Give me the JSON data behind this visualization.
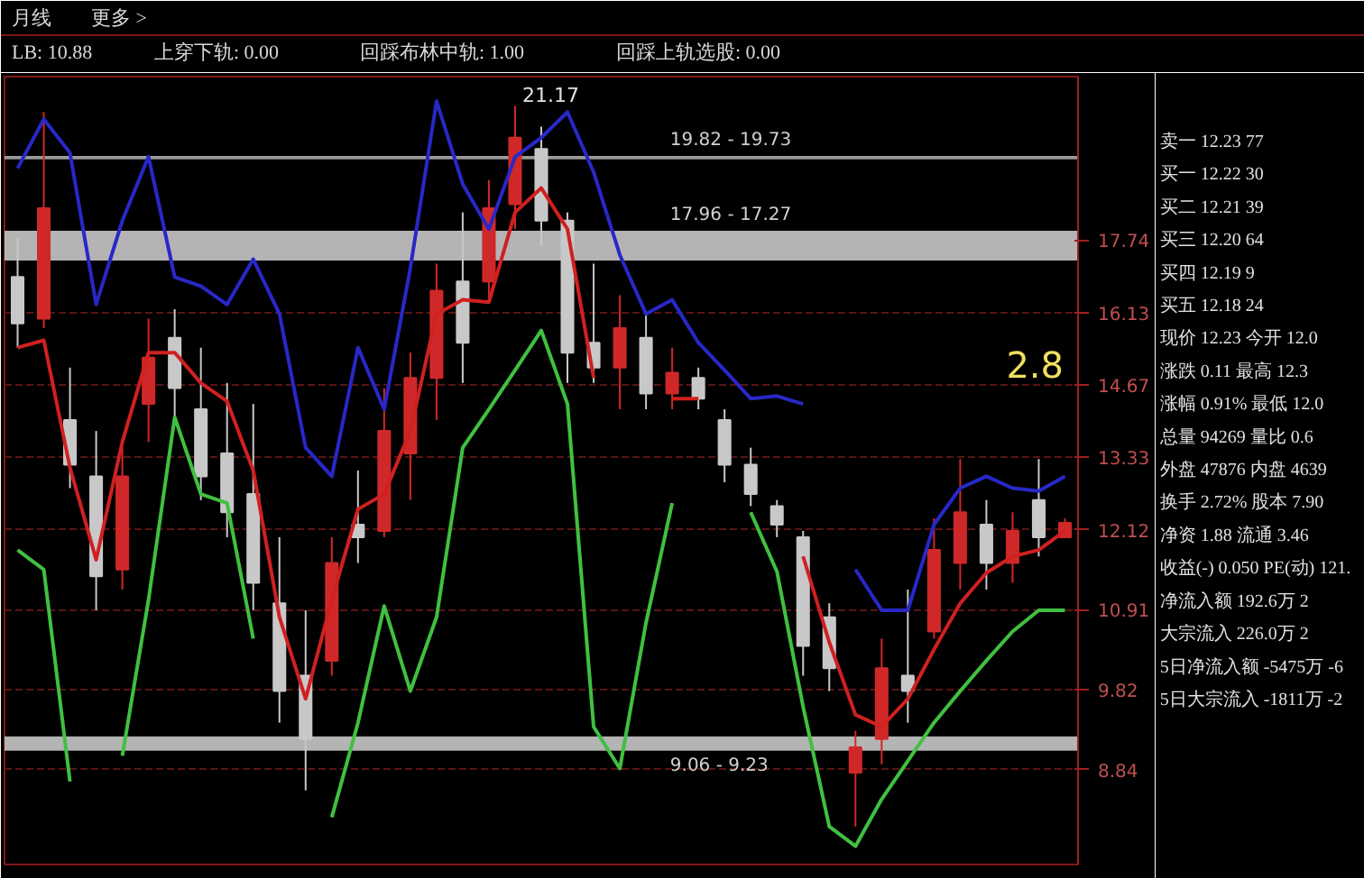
{
  "chart_data": [
    {
      "type": "candlestick",
      "annotations": [
        "月线",
        "更多 >",
        "LB: 10.88",
        "上穿下轨: 0.00",
        "回踩布林中轨: 1.00",
        "回踩上轨选股: 0.00",
        "21.17",
        "2.8"
      ],
      "categories": [
        null,
        null,
        null,
        null,
        null,
        null,
        null,
        null,
        null,
        null,
        null,
        null,
        null,
        null,
        null,
        null,
        null,
        null,
        null,
        null,
        null,
        null,
        null,
        null,
        null,
        null,
        null,
        null,
        null,
        null,
        null,
        null,
        null,
        null,
        null,
        null,
        null,
        null,
        null,
        null,
        null
      ],
      "ohlc": [
        [
          16.9,
          17.8,
          15.4,
          15.9
        ],
        [
          16.0,
          21.0,
          15.8,
          18.5
        ],
        [
          14.0,
          15.0,
          12.8,
          13.2
        ],
        [
          13.0,
          13.8,
          10.9,
          11.4
        ],
        [
          11.5,
          13.5,
          11.2,
          13.0
        ],
        [
          14.3,
          16.0,
          13.6,
          15.2
        ],
        [
          15.6,
          16.2,
          14.0,
          14.6
        ],
        [
          14.2,
          15.4,
          12.6,
          13.0
        ],
        [
          13.4,
          14.7,
          12.0,
          12.4
        ],
        [
          12.7,
          14.3,
          10.9,
          11.3
        ],
        [
          11.0,
          12.0,
          9.4,
          9.8
        ],
        [
          10.0,
          10.9,
          8.6,
          9.2
        ],
        [
          10.2,
          12.0,
          10.0,
          11.6
        ],
        [
          12.2,
          13.1,
          11.6,
          12.0
        ],
        [
          12.1,
          14.6,
          12.0,
          13.8
        ],
        [
          13.4,
          15.3,
          12.6,
          14.8
        ],
        [
          14.8,
          17.2,
          14.0,
          16.6
        ],
        [
          16.8,
          18.4,
          14.7,
          15.5
        ],
        [
          16.8,
          19.2,
          16.4,
          18.5
        ],
        [
          18.6,
          21.17,
          18.0,
          20.3
        ],
        [
          20.0,
          20.6,
          17.6,
          18.2
        ],
        [
          18.2,
          18.4,
          14.7,
          15.3
        ],
        [
          15.5,
          17.2,
          14.7,
          15.0
        ],
        [
          15.0,
          16.5,
          14.2,
          15.8
        ],
        [
          15.6,
          16.1,
          14.2,
          14.5
        ],
        [
          14.5,
          15.4,
          14.2,
          14.9
        ],
        [
          14.8,
          15.0,
          14.2,
          14.4
        ],
        [
          14.0,
          14.2,
          12.9,
          13.2
        ],
        [
          13.2,
          13.5,
          12.5,
          12.7
        ],
        [
          12.5,
          12.6,
          12.0,
          12.2
        ],
        [
          12.0,
          12.1,
          10.0,
          10.4
        ],
        [
          10.8,
          11.0,
          9.8,
          10.1
        ],
        [
          8.8,
          9.3,
          8.2,
          9.1
        ],
        [
          9.2,
          10.5,
          8.9,
          10.1
        ],
        [
          10.0,
          11.2,
          9.4,
          9.8
        ],
        [
          10.6,
          12.3,
          10.5,
          11.8
        ],
        [
          11.6,
          13.3,
          11.2,
          12.4
        ],
        [
          12.2,
          12.6,
          11.2,
          11.6
        ],
        [
          11.6,
          12.4,
          11.3,
          12.1
        ],
        [
          12.6,
          13.3,
          11.7,
          12.0
        ],
        [
          12.0,
          12.3,
          12.0,
          12.23
        ]
      ],
      "colors": [
        "#c8c8c8",
        "#d02828",
        "#c8c8c8",
        "#c8c8c8",
        "#d02828",
        "#d02828",
        "#c8c8c8",
        "#c8c8c8",
        "#c8c8c8",
        "#c8c8c8",
        "#c8c8c8",
        "#c8c8c8",
        "#d02828",
        "#c8c8c8",
        "#d02828",
        "#d02828",
        "#d02828",
        "#c8c8c8",
        "#d02828",
        "#d02828",
        "#c8c8c8",
        "#c8c8c8",
        "#c8c8c8",
        "#d02828",
        "#c8c8c8",
        "#d02828",
        "#c8c8c8",
        "#c8c8c8",
        "#c8c8c8",
        "#c8c8c8",
        "#c8c8c8",
        "#c8c8c8",
        "#d02828",
        "#d02828",
        "#c8c8c8",
        "#d02828",
        "#d02828",
        "#c8c8c8",
        "#d02828",
        "#c8c8c8",
        "#d02828"
      ],
      "series": [
        {
          "type": "line",
          "color": "#2828c8",
          "values": [
            19.5,
            20.8,
            19.9,
            16.3,
            18.2,
            19.8,
            16.9,
            16.7,
            16.3,
            17.3,
            16.1,
            13.5,
            13.0,
            15.4,
            14.2,
            17.1,
            21.3,
            19.1,
            18.0,
            19.8,
            20.3,
            21.0,
            19.4,
            17.4,
            16.1,
            16.4,
            15.5,
            14.95,
            14.4,
            14.45,
            14.3,
            null,
            11.5,
            10.9,
            10.9,
            12.2,
            12.8,
            13.0,
            12.8,
            12.75,
            13.0
          ]
        },
        {
          "type": "line",
          "color": "#d02020",
          "values": [
            15.4,
            15.55,
            13.15,
            11.65,
            13.6,
            15.3,
            15.3,
            14.7,
            14.35,
            13.1,
            10.8,
            9.7,
            11.05,
            12.45,
            12.7,
            13.8,
            16.1,
            16.4,
            16.35,
            18.4,
            19.0,
            18.0,
            14.8,
            null,
            null,
            14.4,
            14.4,
            null,
            null,
            null,
            11.7,
            10.45,
            9.5,
            9.35,
            9.7,
            10.35,
            11.0,
            11.45,
            11.7,
            11.8,
            12.1
          ]
        },
        {
          "type": "line",
          "color": "#40c040",
          "values": [
            11.8,
            11.5,
            8.7,
            null,
            9.0,
            11.05,
            14.05,
            12.7,
            12.55,
            10.5,
            null,
            null,
            8.3,
            9.4,
            10.96,
            9.8,
            10.8,
            13.5,
            14.2,
            14.95,
            15.75,
            14.3,
            9.35,
            8.85,
            10.72,
            12.55,
            null,
            null,
            12.4,
            11.47,
            9.6,
            8.2,
            7.99,
            8.5,
            8.94,
            9.4,
            9.8,
            10.2,
            10.6,
            10.9,
            10.9
          ]
        }
      ],
      "bands": [
        {
          "axis": "y",
          "from": 17.27,
          "to": 17.96,
          "label": "17.96 - 17.27",
          "color": "#b4b4b4"
        },
        {
          "axis": "y",
          "from": 19.73,
          "to": 19.82,
          "label": "19.82 - 19.73",
          "color": "#9a9a9a"
        },
        {
          "axis": "y",
          "from": 9.06,
          "to": 9.23,
          "label": "9.06 - 9.23",
          "color": "#b4b4b4"
        }
      ],
      "ylim": [
        7.8,
        22.0
      ],
      "yticks": [
        8.84,
        9.82,
        10.91,
        12.12,
        13.33,
        14.67,
        16.13,
        17.74
      ],
      "log": true,
      "grid": "y",
      "tick_labels": "y"
    },
    {
      "type": "other",
      "annotations": [
        "卖一 12.23 77",
        "买一 12.22 30",
        "买二 12.21 39",
        "买三 12.20 64",
        "买四 12.19 9",
        "买五 12.18 24",
        "现价 12.23 今开 12.0",
        "涨跌 0.11 最高 12.3",
        "涨幅 0.91% 最低 12.0",
        "总量 94269 量比 0.6",
        "外盘 47876 内盘 4639",
        "换手 2.72% 股本 7.90",
        "净资 1.88 流通 3.46",
        "收益(-) 0.050 PE(动) 121.",
        "净流入额 192.6万 2",
        "大宗流入 226.0万 2",
        "5日净流入额 -5475万 -6",
        "5日大宗流入 -1811万 -2"
      ]
    }
  ]
}
